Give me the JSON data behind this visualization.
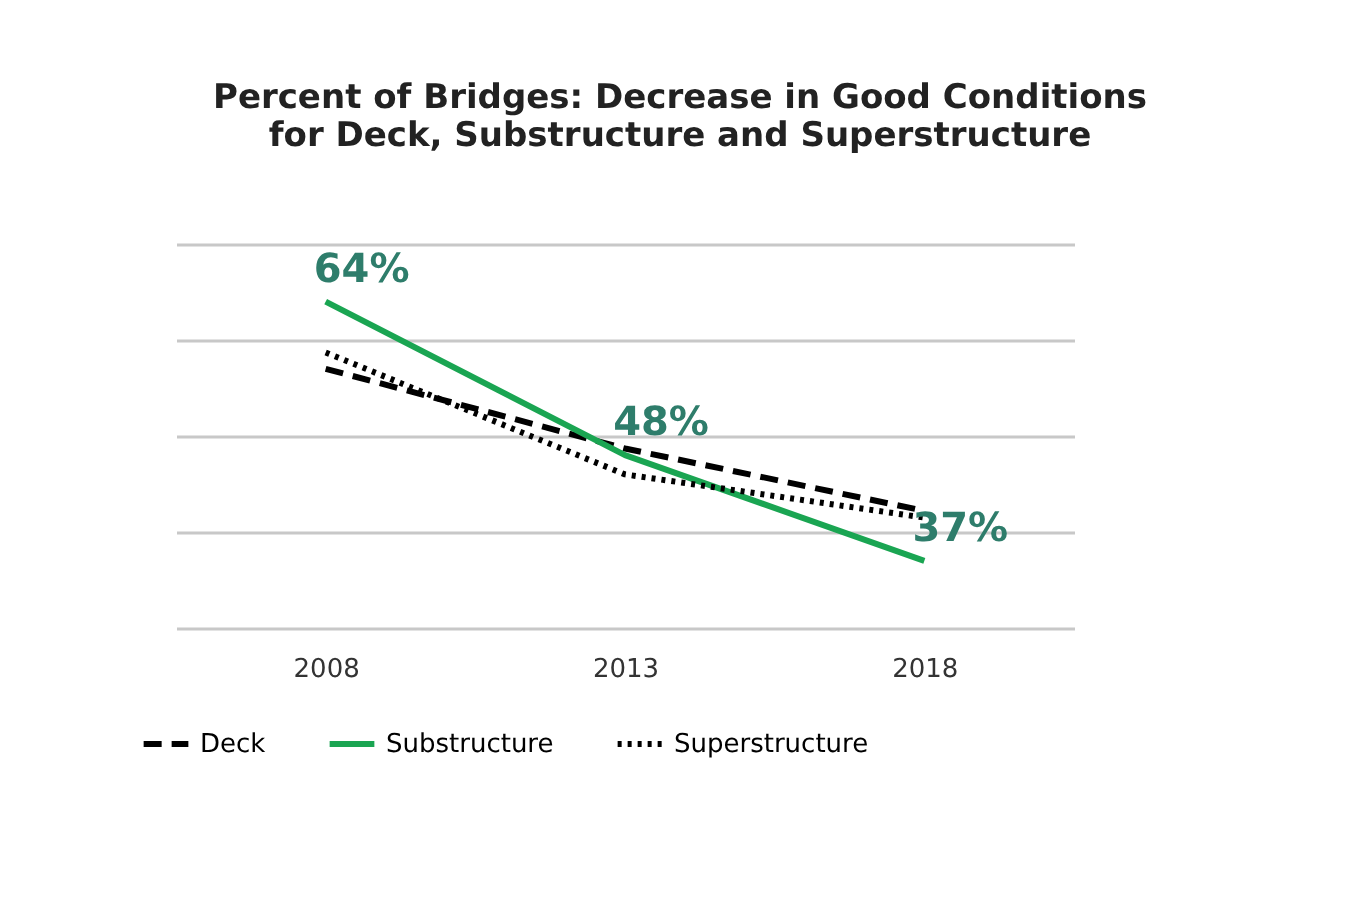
{
  "chart_data": {
    "type": "line",
    "title": "Percent of Bridges: Decrease in Good Conditions\nfor Deck, Substructure and Superstructure",
    "categories": [
      "2008",
      "2013",
      "2018"
    ],
    "series": [
      {
        "name": "Deck",
        "color": "#000000",
        "values": [
          57,
          48.7,
          42.2
        ],
        "line_style": "dashed"
      },
      {
        "name": "Substructure",
        "color": "#1aa552",
        "values": [
          64,
          48,
          37
        ],
        "line_style": "solid",
        "value_labels": [
          "64%",
          "48%",
          "37%"
        ]
      },
      {
        "name": "Superstructure",
        "color": "#000000",
        "values": [
          58.7,
          46,
          41.5
        ],
        "line_style": "dotted"
      }
    ],
    "ylim": [
      30,
      70
    ],
    "yticks": [
      {
        "value": 30,
        "label": null
      },
      {
        "value": 40,
        "label": null
      },
      {
        "value": 50,
        "label": null
      },
      {
        "value": 60,
        "label": null
      },
      {
        "value": 70,
        "label": null
      }
    ],
    "grid": "y",
    "legend": "bottom",
    "tick_labels": "x",
    "marker": "none"
  }
}
